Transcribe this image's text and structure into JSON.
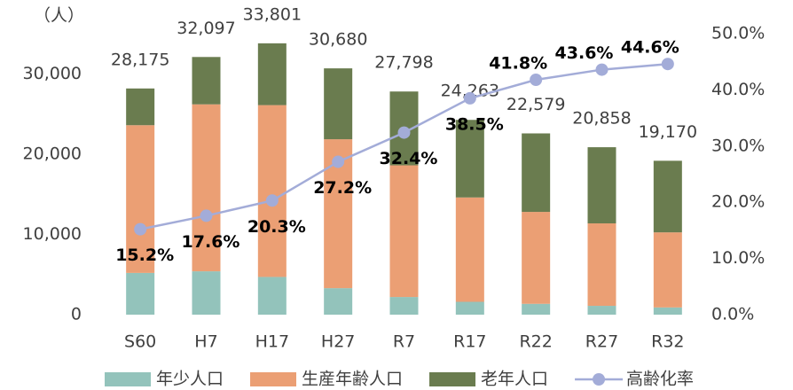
{
  "chart_data": {
    "type": "bar",
    "stacked": true,
    "y_unit_label": "（人）",
    "categories": [
      "S60",
      "H7",
      "H17",
      "H27",
      "R7",
      "R17",
      "R22",
      "R27",
      "R32"
    ],
    "series": [
      {
        "name": "年少人口",
        "color": "#93c3bb",
        "axis": "y",
        "values": [
          5200,
          5400,
          4700,
          3300,
          2200,
          1600,
          1350,
          1100,
          900
        ]
      },
      {
        "name": "生産年齢人口",
        "color": "#eb9f74",
        "axis": "y",
        "values": [
          18400,
          20800,
          21400,
          18550,
          16400,
          13000,
          11450,
          10270,
          9350
        ]
      },
      {
        "name": "老年人口",
        "color": "#6a7c4f",
        "axis": "y",
        "values": [
          4575,
          5897,
          7701,
          8830,
          9198,
          9663,
          9779,
          9488,
          8920
        ]
      },
      {
        "name": "高齢化率",
        "type": "line",
        "color": "#a3acd8",
        "axis": "y2",
        "values": [
          15.2,
          17.6,
          20.3,
          27.2,
          32.4,
          38.5,
          41.8,
          43.6,
          44.6
        ],
        "value_labels": [
          "15.2%",
          "17.6%",
          "20.3%",
          "27.2%",
          "32.4%",
          "38.5%",
          "41.8%",
          "43.6%",
          "44.6%"
        ]
      }
    ],
    "totals": [
      28175,
      32097,
      33801,
      30680,
      27798,
      24263,
      22579,
      20858,
      19170
    ],
    "total_labels": [
      "28,175",
      "32,097",
      "33,801",
      "30,680",
      "27,798",
      "24,263",
      "22,579",
      "20,858",
      "19,170"
    ],
    "ylim": [
      0,
      35000
    ],
    "yticks": [
      0,
      {
        "value": 10000,
        "label": "10,000"
      },
      {
        "value": 20000,
        "label": "20,000"
      },
      {
        "value": 30000,
        "label": "30,000"
      }
    ],
    "y2lim": [
      0,
      50
    ],
    "y2ticks": [
      {
        "value": 0,
        "label": "0.0%"
      },
      {
        "value": 10,
        "label": "10.0%"
      },
      {
        "value": 20,
        "label": "20.0%"
      },
      {
        "value": 30,
        "label": "30.0%"
      },
      {
        "value": 40,
        "label": "40.0%"
      },
      {
        "value": 50,
        "label": "50.0%"
      }
    ],
    "grid": false,
    "legend": "bottom"
  }
}
